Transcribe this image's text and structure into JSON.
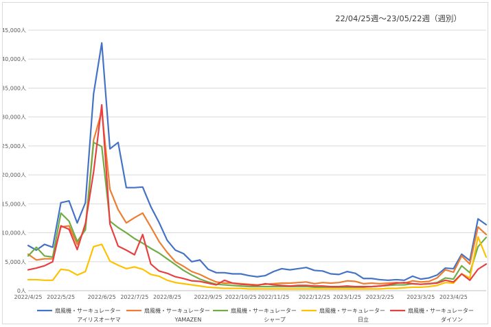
{
  "chart_data": {
    "type": "line",
    "title": "22/04/25週〜23/05/22週（週別）",
    "xlabel": "",
    "ylabel": "",
    "ylim": [
      0,
      45000
    ],
    "grid": true,
    "legend_position": "bottom",
    "y_tick_values": [
      0,
      5000,
      10000,
      15000,
      20000,
      25000,
      30000,
      35000,
      40000,
      45000
    ],
    "y_tick_labels": [
      "0人",
      "5,000人",
      "10,000人",
      "15,000人",
      "20,000人",
      "25,000人",
      "30,000人",
      "35,000人",
      "40,000人",
      "45,000人"
    ],
    "x_tick_labels": [
      {
        "index": 0,
        "label": "2022/4/25"
      },
      {
        "index": 4,
        "label": "2022/5/25"
      },
      {
        "index": 9,
        "label": "2022/6/25"
      },
      {
        "index": 13,
        "label": "2022/7/25"
      },
      {
        "index": 17,
        "label": "2022/8/25"
      },
      {
        "index": 22,
        "label": "2022/9/25"
      },
      {
        "index": 26,
        "label": "2022/10/25"
      },
      {
        "index": 30,
        "label": "2022/11/25"
      },
      {
        "index": 35,
        "label": "2022/12/25"
      },
      {
        "index": 39,
        "label": "2023/1/25"
      },
      {
        "index": 43,
        "label": "2023/2/25"
      },
      {
        "index": 48,
        "label": "2023/3/25"
      },
      {
        "index": 52,
        "label": "2023/4/25"
      }
    ],
    "series": [
      {
        "name": "扇風機・サーキュレーター",
        "brand": "アイリスオーヤマ",
        "color": "#4472c4",
        "values": [
          7800,
          7000,
          8000,
          7500,
          15200,
          15500,
          11700,
          15200,
          34000,
          42800,
          24500,
          25600,
          17800,
          17800,
          17900,
          14500,
          11800,
          8700,
          7000,
          6400,
          5000,
          5300,
          3700,
          3100,
          3100,
          2900,
          2900,
          2600,
          2400,
          2600,
          3300,
          3800,
          3600,
          3800,
          4000,
          3500,
          3400,
          2900,
          2800,
          3300,
          3000,
          2100,
          2100,
          1900,
          1800,
          1900,
          1800,
          2500,
          2000,
          2200,
          2700,
          3900,
          3800,
          6300,
          5200,
          12400,
          11400
        ]
      },
      {
        "name": "扇風機・サーキュレーター",
        "brand": "YAMAZEN",
        "color": "#ed7d31",
        "values": [
          6300,
          5300,
          5500,
          5500,
          11000,
          11200,
          8000,
          11000,
          26000,
          31000,
          17500,
          14000,
          11700,
          12600,
          13400,
          11000,
          8500,
          6600,
          5000,
          4200,
          3300,
          2800,
          2100,
          1500,
          1300,
          1300,
          1200,
          1100,
          1000,
          1100,
          1200,
          1300,
          1300,
          1400,
          1500,
          1200,
          1400,
          1300,
          1400,
          1700,
          1600,
          1200,
          1300,
          1200,
          1300,
          1400,
          1300,
          1700,
          1500,
          1600,
          2200,
          3600,
          3200,
          6000,
          4600,
          11000,
          9700
        ]
      },
      {
        "name": "扇風機・サーキュレーター",
        "brand": "シャープ",
        "color": "#70ad47",
        "values": [
          6000,
          7500,
          6000,
          5800,
          13400,
          12000,
          8500,
          10500,
          25600,
          24900,
          12000,
          10900,
          10000,
          9000,
          8200,
          7300,
          6500,
          5500,
          4500,
          3500,
          2700,
          2000,
          1500,
          1100,
          1000,
          900,
          800,
          700,
          700,
          700,
          700,
          700,
          700,
          700,
          700,
          600,
          600,
          600,
          600,
          600,
          600,
          600,
          700,
          800,
          900,
          1000,
          1000,
          1200,
          1100,
          1200,
          1400,
          2200,
          2000,
          4300,
          3100,
          7600,
          9200
        ]
      },
      {
        "name": "扇風機・サーキュレーター",
        "brand": "日立",
        "color": "#ffc000",
        "values": [
          1900,
          1900,
          1800,
          1800,
          3700,
          3500,
          2700,
          3300,
          7600,
          8000,
          5100,
          4400,
          3800,
          4100,
          3700,
          2800,
          2500,
          1800,
          1400,
          1200,
          1000,
          800,
          600,
          500,
          400,
          400,
          400,
          300,
          300,
          300,
          300,
          300,
          300,
          300,
          300,
          300,
          300,
          300,
          300,
          300,
          300,
          300,
          300,
          300,
          400,
          400,
          500,
          600,
          600,
          700,
          900,
          1400,
          1300,
          2900,
          2200,
          9300,
          5800
        ]
      },
      {
        "name": "扇風機・サーキュレーター",
        "brand": "ダイソン",
        "color": "#e84040",
        "values": [
          3600,
          3900,
          4300,
          5000,
          11200,
          10600,
          7100,
          11600,
          20500,
          32100,
          11500,
          7700,
          7000,
          6200,
          9700,
          4600,
          3400,
          3000,
          2400,
          2100,
          1700,
          1600,
          1300,
          1000,
          1800,
          1300,
          1100,
          1000,
          900,
          1200,
          1000,
          900,
          800,
          900,
          900,
          800,
          800,
          700,
          700,
          800,
          700,
          700,
          700,
          800,
          1000,
          1300,
          1400,
          1200,
          1100,
          1200,
          1300,
          1800,
          1500,
          2900,
          1800,
          3700,
          4600
        ]
      }
    ]
  }
}
